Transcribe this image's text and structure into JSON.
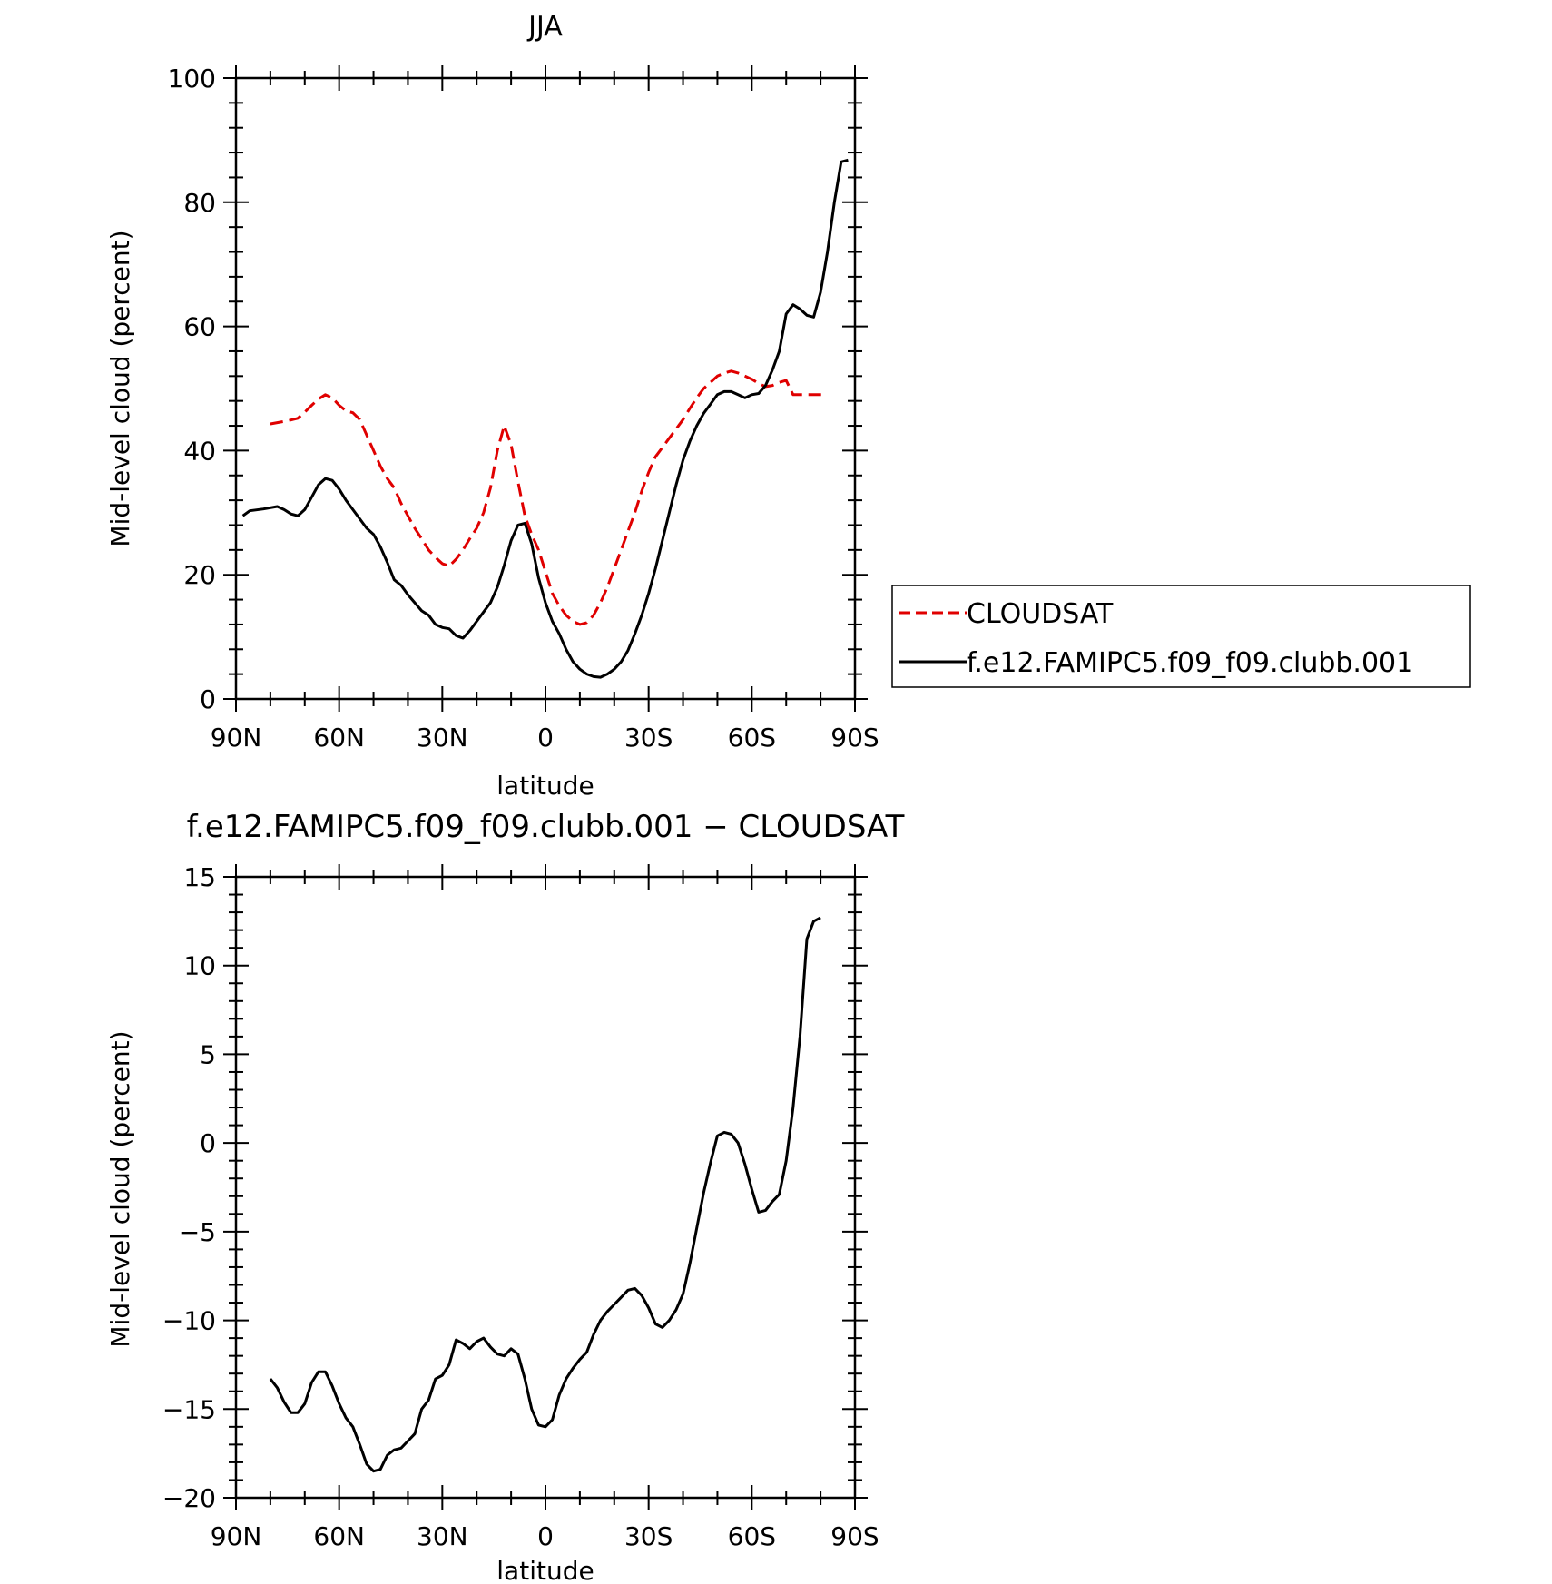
{
  "chart_data": [
    {
      "type": "line",
      "title": "JJA",
      "xlabel": "latitude",
      "ylabel": "Mid-level cloud (percent)",
      "xlim": [
        90,
        -90
      ],
      "ylim": [
        0,
        100
      ],
      "xticks": [
        {
          "v": 90,
          "label": "90N"
        },
        {
          "v": 60,
          "label": "60N"
        },
        {
          "v": 30,
          "label": "30N"
        },
        {
          "v": 0,
          "label": "0"
        },
        {
          "v": -30,
          "label": "30S"
        },
        {
          "v": -60,
          "label": "60S"
        },
        {
          "v": -90,
          "label": "90S"
        }
      ],
      "yticks": [
        {
          "v": 0,
          "label": "0"
        },
        {
          "v": 20,
          "label": "20"
        },
        {
          "v": 40,
          "label": "40"
        },
        {
          "v": 60,
          "label": "60"
        },
        {
          "v": 80,
          "label": "80"
        },
        {
          "v": 100,
          "label": "100"
        }
      ],
      "legend_position": "right",
      "series": [
        {
          "name": "CLOUDSAT",
          "color": "#e00000",
          "dash": "dashed",
          "x": [
            80,
            75,
            72,
            70,
            68,
            66,
            64,
            62,
            60,
            58,
            56,
            54,
            52,
            50,
            48,
            46,
            44,
            42,
            40,
            38,
            36,
            34,
            32,
            30,
            28,
            26,
            24,
            22,
            20,
            18,
            16,
            14,
            12,
            10,
            8,
            6,
            4,
            2,
            0,
            -2,
            -4,
            -6,
            -8,
            -10,
            -12,
            -14,
            -16,
            -18,
            -20,
            -22,
            -24,
            -26,
            -28,
            -30,
            -32,
            -34,
            -36,
            -38,
            -40,
            -42,
            -44,
            -46,
            -48,
            -50,
            -52,
            -54,
            -56,
            -58,
            -60,
            -62,
            -64,
            -66,
            -68,
            -70,
            -72,
            -74,
            -76,
            -78,
            -80,
            -82
          ],
          "y": [
            44.3,
            44.8,
            45.2,
            46.2,
            47.3,
            48.3,
            49.0,
            48.5,
            47.3,
            46.4,
            46.1,
            45.0,
            42.5,
            40.0,
            37.5,
            35.5,
            34.0,
            31.5,
            29.5,
            27.5,
            25.8,
            24.0,
            22.8,
            21.8,
            21.4,
            22.5,
            24.0,
            25.8,
            27.5,
            30.0,
            34.0,
            40.0,
            44.0,
            41.0,
            35.0,
            29.5,
            26.5,
            24.0,
            20.5,
            17.0,
            15.0,
            13.5,
            12.5,
            12.0,
            12.3,
            13.5,
            15.5,
            18.0,
            21.0,
            24.0,
            27.0,
            30.0,
            33.5,
            36.5,
            39.0,
            40.5,
            42.0,
            43.5,
            45.0,
            46.8,
            48.5,
            50.0,
            51.0,
            52.0,
            52.5,
            52.8,
            52.5,
            52.0,
            51.5,
            50.8,
            50.3,
            50.5,
            51.0,
            51.3,
            49.0,
            49.0,
            49.0,
            49.0,
            49.0,
            49.0
          ],
          "x_trim": 36
        },
        {
          "name": "f.e12.FAMIPC5.f09_f09.clubb.001",
          "color": "#000000",
          "dash": "solid",
          "x": [
            88,
            86,
            82,
            78,
            76,
            74,
            72,
            70,
            68,
            66,
            64,
            62,
            60,
            58,
            56,
            54,
            52,
            50,
            48,
            46,
            44,
            42,
            40,
            38,
            36,
            34,
            32,
            30,
            28,
            26,
            24,
            22,
            20,
            18,
            16,
            14,
            12,
            10,
            8,
            6,
            4,
            2,
            0,
            -2,
            -4,
            -6,
            -8,
            -10,
            -12,
            -14,
            -16,
            -18,
            -20,
            -22,
            -24,
            -26,
            -28,
            -30,
            -32,
            -34,
            -36,
            -38,
            -40,
            -42,
            -44,
            -46,
            -48,
            -50,
            -52,
            -54,
            -56,
            -58,
            -60,
            -62,
            -64,
            -66,
            -68,
            -70,
            -72,
            -74,
            -76,
            -78,
            -80,
            -82,
            -84,
            -86,
            -88
          ],
          "y": [
            29.5,
            30.3,
            30.6,
            31.0,
            30.5,
            29.8,
            29.5,
            30.5,
            32.5,
            34.5,
            35.5,
            35.2,
            33.8,
            32.0,
            30.5,
            29.0,
            27.5,
            26.5,
            24.5,
            22.0,
            19.2,
            18.3,
            16.8,
            15.5,
            14.2,
            13.5,
            12.0,
            11.5,
            11.3,
            10.2,
            9.8,
            11.0,
            12.5,
            14.0,
            15.5,
            18.0,
            21.5,
            25.5,
            28.0,
            28.3,
            25.0,
            19.5,
            15.5,
            12.5,
            10.5,
            8.0,
            6.0,
            4.8,
            4.0,
            3.6,
            3.5,
            4.0,
            4.8,
            6.0,
            7.8,
            10.5,
            13.5,
            17.0,
            21.0,
            25.5,
            30.0,
            34.5,
            38.5,
            41.5,
            44.0,
            46.0,
            47.5,
            49.0,
            49.5,
            49.5,
            49.0,
            48.5,
            49.0,
            49.2,
            50.5,
            53.0,
            56.0,
            62.0,
            63.5,
            62.8,
            61.8,
            61.5,
            65.5,
            72.0,
            80.0,
            86.5,
            86.8
          ],
          "x_trim": 36
        }
      ]
    },
    {
      "type": "line",
      "title": "f.e12.FAMIPC5.f09_f09.clubb.001 − CLOUDSAT",
      "xlabel": "latitude",
      "ylabel": "Mid-level cloud (percent)",
      "xlim": [
        90,
        -90
      ],
      "ylim": [
        -20,
        15
      ],
      "xticks": [
        {
          "v": 90,
          "label": "90N"
        },
        {
          "v": 60,
          "label": "60N"
        },
        {
          "v": 30,
          "label": "30N"
        },
        {
          "v": 0,
          "label": "0"
        },
        {
          "v": -30,
          "label": "30S"
        },
        {
          "v": -60,
          "label": "60S"
        },
        {
          "v": -90,
          "label": "90S"
        }
      ],
      "yticks": [
        {
          "v": -20,
          "label": "−20"
        },
        {
          "v": -15,
          "label": "−15"
        },
        {
          "v": -10,
          "label": "−10"
        },
        {
          "v": -5,
          "label": "−5"
        },
        {
          "v": 0,
          "label": "0"
        },
        {
          "v": 5,
          "label": "5"
        },
        {
          "v": 10,
          "label": "10"
        },
        {
          "v": 15,
          "label": "15"
        }
      ],
      "series": [
        {
          "color": "#000000",
          "dash": "solid",
          "x": [
            80,
            78,
            76,
            74,
            72,
            70,
            68,
            66,
            64,
            62,
            60,
            58,
            56,
            54,
            52,
            50,
            48,
            46,
            44,
            42,
            40,
            38,
            36,
            34,
            32,
            30,
            28,
            26,
            24,
            22,
            20,
            18,
            16,
            14,
            12,
            10,
            8,
            6,
            4,
            2,
            0,
            -2,
            -4,
            -6,
            -8,
            -10,
            -12,
            -14,
            -16,
            -18,
            -20,
            -22,
            -24,
            -26,
            -28,
            -30,
            -32,
            -34,
            -36,
            -38,
            -40,
            -42,
            -44,
            -46,
            -48,
            -50,
            -52,
            -54,
            -56,
            -58,
            -60,
            -62,
            -64,
            -66,
            -68,
            -70,
            -72,
            -74,
            -76,
            -78,
            -80
          ],
          "y": [
            -13.3,
            -13.8,
            -14.6,
            -15.2,
            -15.2,
            -14.7,
            -13.5,
            -12.9,
            -12.9,
            -13.7,
            -14.7,
            -15.5,
            -16.0,
            -17.0,
            -18.1,
            -18.5,
            -18.4,
            -17.6,
            -17.3,
            -17.2,
            -16.8,
            -16.4,
            -15.0,
            -14.5,
            -13.3,
            -13.1,
            -12.5,
            -11.1,
            -11.3,
            -11.6,
            -11.2,
            -11.0,
            -11.5,
            -11.9,
            -12.0,
            -11.6,
            -11.9,
            -13.3,
            -15.0,
            -15.9,
            -16.0,
            -15.6,
            -14.2,
            -13.3,
            -12.7,
            -12.2,
            -11.8,
            -10.8,
            -10.0,
            -9.5,
            -9.1,
            -8.7,
            -8.3,
            -8.2,
            -8.6,
            -9.3,
            -10.2,
            -10.4,
            -10.0,
            -9.4,
            -8.5,
            -6.8,
            -4.8,
            -2.8,
            -1.1,
            0.4,
            0.6,
            0.5,
            0.0,
            -1.2,
            -2.6,
            -3.9,
            -3.8,
            -3.3,
            -2.9,
            -1.0,
            2.0,
            6.0,
            11.5,
            12.5,
            12.7
          ],
          "x_trim": 36
        }
      ]
    }
  ]
}
